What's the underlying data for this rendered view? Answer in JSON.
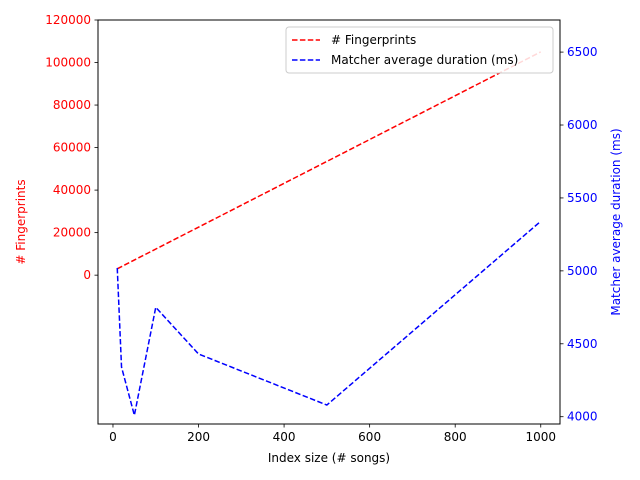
{
  "chart_data": {
    "type": "line",
    "title": "",
    "xlabel": "Index size (# songs)",
    "ylabel_left": "# Fingerprints",
    "ylabel_right": "Matcher average duration (ms)",
    "xlim": [
      -35,
      1045
    ],
    "ylim_left": [
      -70000,
      120000
    ],
    "ylim_right": [
      3950,
      6720
    ],
    "x_ticks": [
      0,
      200,
      400,
      600,
      800,
      1000
    ],
    "y_left_ticks": [
      0,
      20000,
      40000,
      60000,
      80000,
      100000,
      120000
    ],
    "y_right_ticks": [
      4000,
      4500,
      5000,
      5500,
      6000,
      6500
    ],
    "grid": false,
    "legend_position": "top-right",
    "series": [
      {
        "name": "# Fingerprints",
        "axis": "left",
        "color": "#ff0000",
        "style": "dashed",
        "x": [
          10,
          1000
        ],
        "y": [
          3000,
          105000
        ]
      },
      {
        "name": "Matcher average duration (ms)",
        "axis": "right",
        "color": "#0000ff",
        "style": "dashed",
        "x": [
          10,
          20,
          50,
          100,
          200,
          500,
          1000
        ],
        "y": [
          5020,
          4340,
          4010,
          4750,
          4430,
          4080,
          5340
        ]
      }
    ]
  }
}
